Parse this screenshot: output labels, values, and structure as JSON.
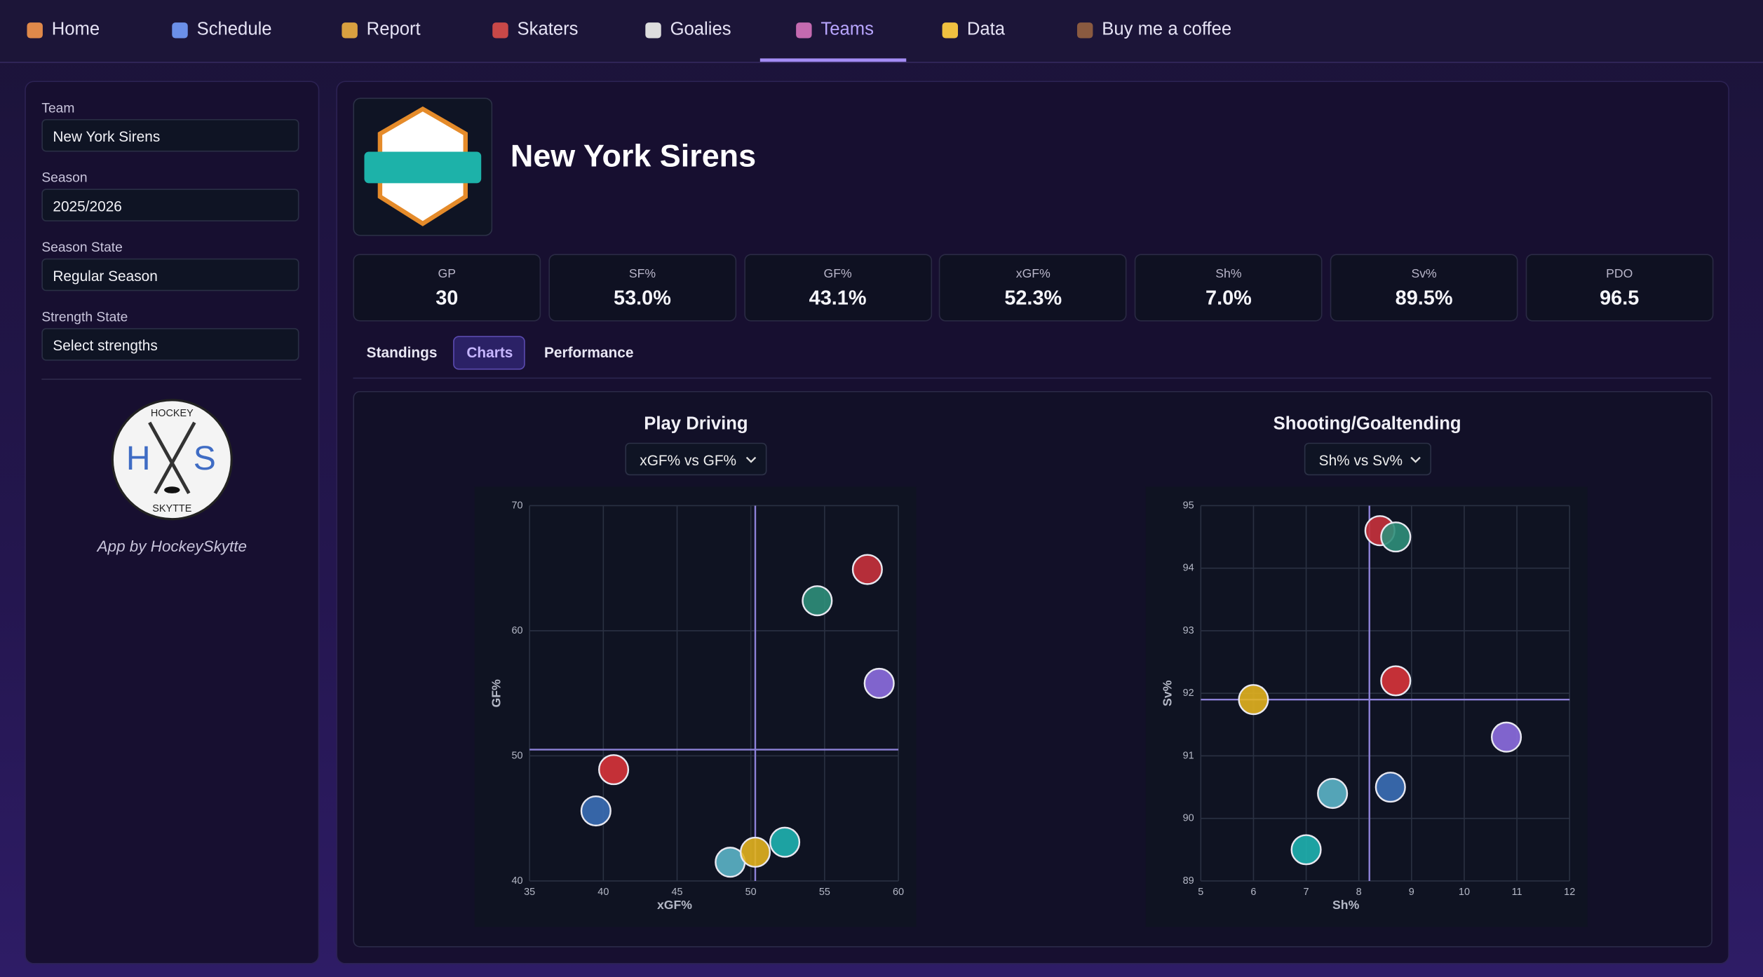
{
  "nav": [
    "Home",
    "Schedule",
    "Report",
    "Skaters",
    "Goalies",
    "Teams",
    "Data",
    "Buy me a coffee"
  ],
  "sidebar": {
    "fields": [
      {
        "label": "Team",
        "value": "New York Sirens"
      },
      {
        "label": "Season",
        "value": "2025/2026"
      },
      {
        "label": "Season State",
        "value": "Regular Season"
      },
      {
        "label": "Strength State",
        "value": "Select strengths"
      }
    ],
    "logo": {
      "top": "HOCKEY",
      "left": "H",
      "right": "S",
      "bottom": "SKYTTE"
    },
    "credit": "App by HockeySkytte"
  },
  "team_name": "New York Sirens",
  "stats": [
    {
      "label": "GP",
      "value": "30"
    },
    {
      "label": "SF%",
      "value": "53.0%"
    },
    {
      "label": "GF%",
      "value": "43.1%"
    },
    {
      "label": "xGF%",
      "value": "52.3%"
    },
    {
      "label": "Sh%",
      "value": "7.0%"
    },
    {
      "label": "Sv%",
      "value": "89.5%"
    },
    {
      "label": "PDO",
      "value": "96.5"
    }
  ],
  "tabs": [
    "Standings",
    "Charts",
    "Performance"
  ],
  "charts": [
    {
      "type": "scatter",
      "title": "Play Driving",
      "select": "xGF% vs GF%",
      "xlabel": "xGF%",
      "ylabel": "GF%",
      "x": [
        57.9,
        54.5,
        58.7,
        40.7,
        39.5,
        48.6,
        50.3,
        52.3
      ],
      "y": [
        64.9,
        62.4,
        55.8,
        48.9,
        45.6,
        41.5,
        42.3,
        43.1
      ],
      "colors": [
        "#c8323c",
        "#2f8f7a",
        "#8d6ee0",
        "#d8343a",
        "#3b6fb6",
        "#5cb5c8",
        "#e2b21f",
        "#1fb3b0"
      ],
      "xlim": [
        35,
        60
      ],
      "ylim": [
        40,
        70
      ],
      "xticks": [
        35,
        40,
        45,
        50,
        55,
        60
      ],
      "yticks": [
        40,
        50,
        60,
        70
      ],
      "xref": 50.3,
      "yref": 50.5,
      "grid": true
    },
    {
      "type": "scatter",
      "title": "Shooting/Goaltending",
      "select": "Sh% vs Sv%",
      "xlabel": "Sh%",
      "ylabel": "Sv%",
      "x": [
        8.4,
        8.7,
        10.8,
        8.7,
        8.6,
        7.5,
        6.0,
        7.0
      ],
      "y": [
        94.6,
        94.5,
        91.3,
        92.2,
        90.5,
        90.4,
        91.9,
        89.5
      ],
      "colors": [
        "#c8323c",
        "#2f8f7a",
        "#8d6ee0",
        "#d8343a",
        "#3b6fb6",
        "#5cb5c8",
        "#e2b21f",
        "#1fb3b0"
      ],
      "xlim": [
        5,
        12
      ],
      "ylim": [
        89,
        95
      ],
      "xticks": [
        5,
        6,
        7,
        8,
        9,
        10,
        11,
        12
      ],
      "yticks": [
        89,
        90,
        91,
        92,
        93,
        94,
        95
      ],
      "xref": 8.2,
      "yref": 91.9,
      "grid": true
    }
  ]
}
